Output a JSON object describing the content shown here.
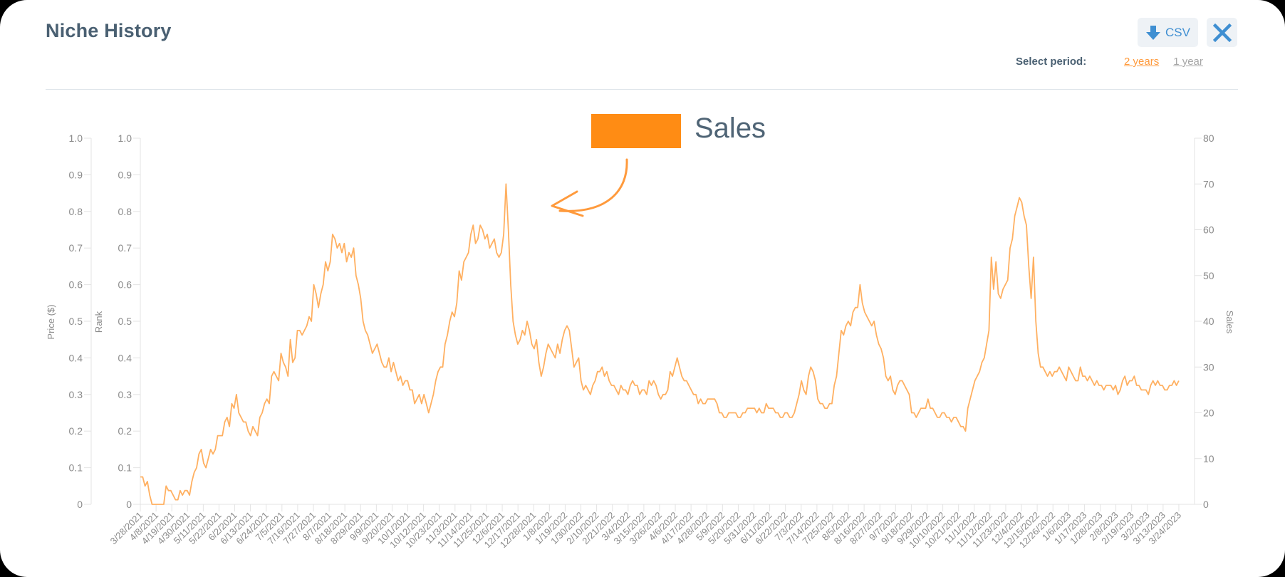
{
  "header": {
    "title": "Niche History",
    "csv_label": "CSV",
    "csv_icon": "download-arrow-icon",
    "close_icon": "close-x-icon",
    "period_label": "Select period:",
    "period_options": [
      {
        "label": "2 years",
        "active": true
      },
      {
        "label": "1 year",
        "active": false
      }
    ]
  },
  "colors": {
    "accent": "#ff9a3c",
    "series_line": "#ffb061",
    "legend_swatch": "#ff8c14",
    "title": "#4a6072",
    "button_bg": "#eef2f6",
    "button_icon": "#3f8fd2"
  },
  "legend": {
    "label": "Sales"
  },
  "chart_data": {
    "type": "line",
    "title": "",
    "legend": [
      "Sales"
    ],
    "legend_position": "top-center",
    "grid": false,
    "axes": {
      "left_outer": {
        "label": "Price ($)",
        "ticks": [
          "0",
          "0.1",
          "0.2",
          "0.3",
          "0.4",
          "0.5",
          "0.6",
          "0.7",
          "0.8",
          "0.9",
          "1.0"
        ],
        "range": [
          0,
          1
        ]
      },
      "left_inner": {
        "label": "Rank",
        "ticks": [
          "0",
          "0.1",
          "0.2",
          "0.3",
          "0.4",
          "0.5",
          "0.6",
          "0.7",
          "0.8",
          "0.9",
          "1.0"
        ],
        "range": [
          0,
          1
        ]
      },
      "right": {
        "label": "Sales",
        "ticks": [
          "0",
          "10",
          "20",
          "30",
          "40",
          "50",
          "60",
          "70",
          "80"
        ],
        "range": [
          0,
          80
        ]
      }
    },
    "xlabel": "",
    "ylabel": "Sales",
    "ylim": [
      0,
      80
    ],
    "x_tick_labels": [
      "3/28/2021",
      "4/8/2021",
      "4/19/2021",
      "4/30/2021",
      "5/11/2021",
      "5/22/2021",
      "6/2/2021",
      "6/13/2021",
      "6/24/2021",
      "7/5/2021",
      "7/16/2021",
      "7/27/2021",
      "8/7/2021",
      "8/18/2021",
      "8/29/2021",
      "9/9/2021",
      "9/20/2021",
      "10/1/2021",
      "10/12/2021",
      "10/23/2021",
      "11/3/2021",
      "11/14/2021",
      "11/25/2021",
      "12/6/2021",
      "12/17/2021",
      "12/28/2021",
      "1/8/2022",
      "1/19/2022",
      "1/30/2022",
      "2/10/2022",
      "2/21/2022",
      "3/4/2022",
      "3/15/2022",
      "3/26/2022",
      "4/6/2022",
      "4/17/2022",
      "4/28/2022",
      "5/9/2022",
      "5/20/2022",
      "5/31/2022",
      "6/11/2022",
      "6/22/2022",
      "7/3/2022",
      "7/14/2022",
      "7/25/2022",
      "8/5/2022",
      "8/16/2022",
      "8/27/2022",
      "9/7/2022",
      "9/18/2022",
      "9/29/2022",
      "10/10/2022",
      "10/21/2022",
      "11/1/2022",
      "11/12/2022",
      "11/23/2022",
      "12/4/2022",
      "12/15/2022",
      "12/26/2022",
      "1/6/2023",
      "1/17/2023",
      "1/28/2023",
      "2/8/2023",
      "2/19/2023",
      "3/2/2023",
      "3/13/2023",
      "3/24/2023"
    ],
    "series": [
      {
        "name": "Sales",
        "axis": "right",
        "x_step_days": 5.5,
        "values": [
          6,
          6,
          4,
          5,
          2,
          0,
          0,
          0,
          0,
          0,
          0,
          4,
          3,
          3,
          2,
          1,
          1,
          3,
          2,
          3,
          3,
          2,
          5,
          7,
          8,
          11,
          12,
          9,
          8,
          10,
          12,
          11,
          12,
          15,
          15,
          15,
          18,
          19,
          17,
          22,
          21,
          24,
          20,
          19,
          18,
          18,
          16,
          15,
          17,
          16,
          15,
          19,
          20,
          22,
          23,
          22,
          28,
          29,
          28,
          27,
          33,
          31,
          30,
          28,
          36,
          31,
          32,
          38,
          38,
          37,
          38,
          39,
          41,
          40,
          48,
          46,
          43,
          46,
          48,
          53,
          51,
          53,
          59,
          58,
          56,
          57,
          55,
          57,
          53,
          55,
          54,
          56,
          50,
          48,
          45,
          40,
          38,
          37,
          35,
          33,
          34,
          35,
          33,
          31,
          30,
          30,
          32,
          29,
          31,
          29,
          27,
          28,
          26,
          27,
          27,
          25,
          25,
          22,
          23,
          24,
          22,
          24,
          22,
          20,
          22,
          24,
          27,
          29,
          30,
          30,
          35,
          37,
          40,
          42,
          41,
          44,
          51,
          49,
          53,
          54,
          55,
          59,
          61,
          57,
          58,
          61,
          60,
          58,
          59,
          56,
          57,
          58,
          55,
          54,
          55,
          59,
          70,
          60,
          48,
          40,
          37,
          35,
          36,
          38,
          37,
          40,
          38,
          35,
          34,
          36,
          31,
          28,
          30,
          33,
          35,
          34,
          33,
          32,
          35,
          33,
          36,
          38,
          39,
          38,
          34,
          30,
          31,
          32,
          27,
          25,
          26,
          25,
          24,
          26,
          27,
          29,
          29,
          30,
          28,
          29,
          27,
          26,
          26,
          25,
          24,
          26,
          25,
          25,
          24,
          26,
          27,
          26,
          26,
          24,
          25,
          25,
          24,
          27,
          26,
          27,
          26,
          24,
          23,
          24,
          24,
          25,
          29,
          28,
          30,
          32,
          30,
          28,
          27,
          27,
          26,
          25,
          24,
          24,
          22,
          23,
          22,
          22,
          23,
          23,
          23,
          23,
          22,
          20,
          20,
          19,
          19,
          20,
          20,
          20,
          20,
          19,
          19,
          20,
          20,
          21,
          21,
          21,
          21,
          20,
          21,
          20,
          20,
          22,
          21,
          21,
          21,
          20,
          20,
          19,
          19,
          20,
          20,
          19,
          19,
          20,
          22,
          24,
          27,
          25,
          24,
          28,
          30,
          29,
          27,
          23,
          22,
          22,
          21,
          21,
          22,
          22,
          26,
          28,
          33,
          38,
          37,
          39,
          40,
          39,
          42,
          43,
          43,
          48,
          44,
          42,
          41,
          40,
          39,
          40,
          37,
          35,
          34,
          32,
          28,
          27,
          28,
          25,
          24,
          26,
          27,
          27,
          26,
          25,
          24,
          20,
          20,
          19,
          20,
          21,
          21,
          21,
          23,
          21,
          21,
          20,
          19,
          19,
          20,
          20,
          19,
          19,
          18,
          19,
          19,
          18,
          17,
          17,
          16,
          21,
          23,
          25,
          27,
          28,
          29,
          31,
          32,
          35,
          38,
          54,
          47,
          53,
          46,
          45,
          47,
          48,
          49,
          56,
          58,
          63,
          65,
          67,
          66,
          63,
          61,
          52,
          45,
          54,
          40,
          33,
          30,
          30,
          29,
          28,
          29,
          28,
          29,
          29,
          30,
          29,
          28,
          27,
          30,
          29,
          28,
          27,
          27,
          30,
          28,
          28,
          27,
          28,
          27,
          26,
          27,
          26,
          26,
          25,
          26,
          26,
          26,
          25,
          26,
          24,
          25,
          27,
          28,
          26,
          27,
          27,
          28,
          26,
          26,
          25,
          25,
          25,
          24,
          26,
          27,
          26,
          27,
          26,
          26,
          25,
          25,
          26,
          26,
          27,
          26,
          27
        ]
      }
    ],
    "annotations": [
      {
        "type": "arrow",
        "text": "",
        "points_to": "peak near 12/28/2021 (~70)"
      }
    ]
  }
}
